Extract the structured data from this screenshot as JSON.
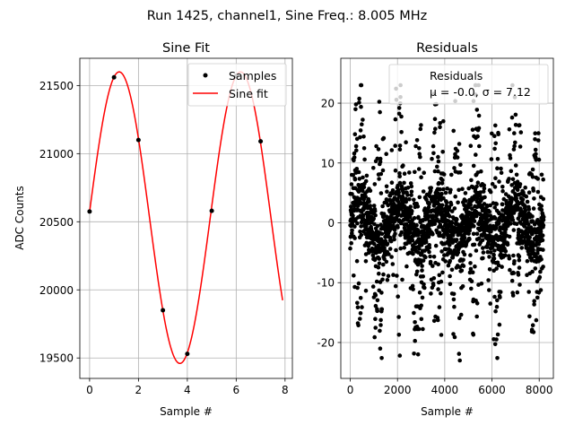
{
  "suptitle": "Run 1425, channel1, Sine Freq.: 8.005 MHz",
  "chart_data": [
    {
      "type": "line",
      "title": "Sine Fit",
      "xlabel": "Sample #",
      "ylabel": "ADC Counts",
      "xlim": [
        -0.4,
        8.3
      ],
      "ylim": [
        19350,
        21700
      ],
      "xticks": [
        0,
        2,
        4,
        6,
        8
      ],
      "yticks": [
        19500,
        20000,
        20500,
        21000,
        21500
      ],
      "grid": true,
      "legend": {
        "placement": "top-right",
        "entries": [
          "Samples",
          "Sine fit"
        ]
      },
      "samples": {
        "name": "Samples",
        "x": [
          0,
          1,
          2,
          3,
          4,
          5,
          6,
          7
        ],
        "y": [
          20575,
          21560,
          21100,
          19850,
          19530,
          20580,
          21570,
          21090
        ],
        "color": "#000000"
      },
      "fit": {
        "name": "Sine fit",
        "offset": 20530,
        "amplitude": 1070,
        "period": 4.97,
        "phase": 0.04,
        "x_range": [
          0,
          7.9
        ],
        "color": "#ff0000"
      }
    },
    {
      "type": "scatter",
      "title": "Residuals",
      "xlabel": "Sample #",
      "ylabel": "",
      "xlim": [
        -400,
        8600
      ],
      "ylim": [
        -26,
        27.5
      ],
      "xticks": [
        0,
        2000,
        4000,
        6000,
        8000
      ],
      "yticks": [
        -20,
        -10,
        0,
        10,
        20
      ],
      "grid": true,
      "legend": {
        "placement": "top-right",
        "entries": [
          "Residuals",
          "μ = -0.0, σ = 7.12"
        ]
      },
      "n_points": 8192,
      "mean": -0.0,
      "std": 7.12,
      "burst_period": 1640,
      "max_abs": 23,
      "color": "#000000"
    }
  ]
}
